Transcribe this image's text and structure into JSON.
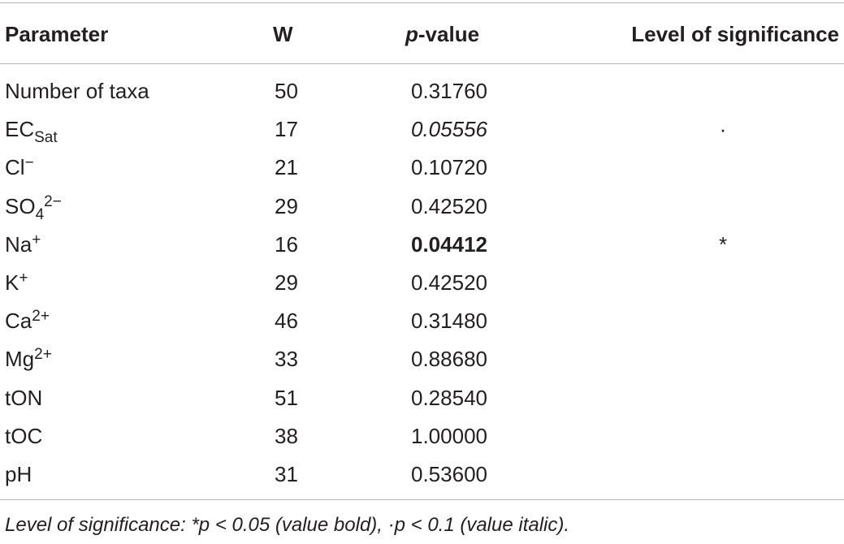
{
  "table": {
    "headers": {
      "parameter": "Parameter",
      "w": "W",
      "p_italic": "p",
      "p_rest": "-value",
      "significance": "Level of significance"
    },
    "rows": [
      {
        "param": "Number of taxa",
        "sub": "",
        "sup": "",
        "w": "50",
        "p": "0.31760",
        "style": "normal",
        "sig": ""
      },
      {
        "param": "EC",
        "sub": "Sat",
        "sup": "",
        "w": "17",
        "p": "0.05556",
        "style": "italic",
        "sig": "·"
      },
      {
        "param": "Cl",
        "sub": "",
        "sup": "−",
        "w": "21",
        "p": "0.10720",
        "style": "normal",
        "sig": ""
      },
      {
        "param": "SO",
        "sub": "4",
        "sup": "2−",
        "w": "29",
        "p": "0.42520",
        "style": "normal",
        "sig": ""
      },
      {
        "param": "Na",
        "sub": "",
        "sup": "+",
        "w": "16",
        "p": "0.04412",
        "style": "bold",
        "sig": "*"
      },
      {
        "param": "K",
        "sub": "",
        "sup": "+",
        "w": "29",
        "p": "0.42520",
        "style": "normal",
        "sig": ""
      },
      {
        "param": "Ca",
        "sub": "",
        "sup": "2+",
        "w": "46",
        "p": "0.31480",
        "style": "normal",
        "sig": ""
      },
      {
        "param": "Mg",
        "sub": "",
        "sup": "2+",
        "w": "33",
        "p": "0.88680",
        "style": "normal",
        "sig": ""
      },
      {
        "param": "tON",
        "sub": "",
        "sup": "",
        "w": "51",
        "p": "0.28540",
        "style": "normal",
        "sig": ""
      },
      {
        "param": "tOC",
        "sub": "",
        "sup": "",
        "w": "38",
        "p": "1.00000",
        "style": "normal",
        "sig": ""
      },
      {
        "param": "pH",
        "sub": "",
        "sup": "",
        "w": "31",
        "p": "0.53600",
        "style": "normal",
        "sig": ""
      }
    ],
    "footnote": "Level of significance: *p < 0.05 (value bold), ·p < 0.1 (value italic)."
  }
}
